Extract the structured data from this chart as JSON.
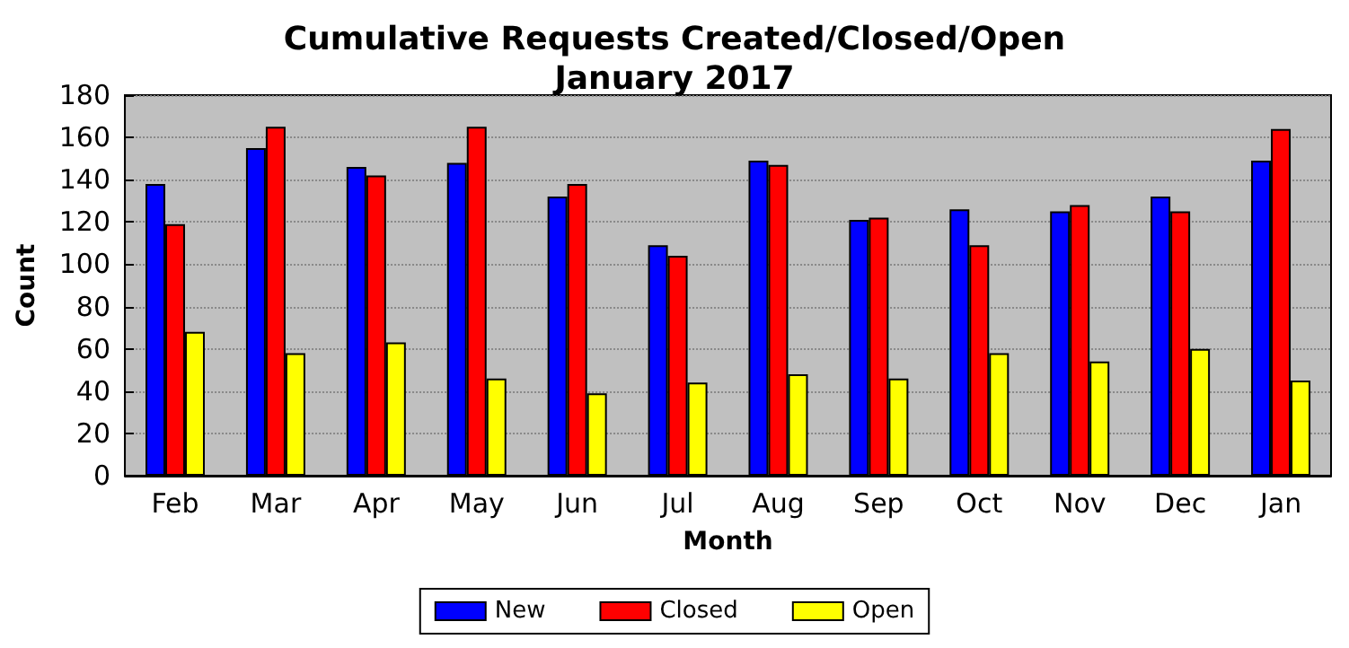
{
  "chart_data": {
    "type": "bar",
    "title": "Cumulative Requests Created/Closed/Open\nJanuary 2017",
    "xlabel": "Month",
    "ylabel": "Count",
    "categories": [
      "Feb",
      "Mar",
      "Apr",
      "May",
      "Jun",
      "Jul",
      "Aug",
      "Sep",
      "Oct",
      "Nov",
      "Dec",
      "Jan"
    ],
    "series": [
      {
        "name": "New",
        "color": "#0000ff",
        "values": [
          138,
          155,
          146,
          148,
          132,
          109,
          149,
          121,
          126,
          125,
          132,
          149
        ]
      },
      {
        "name": "Closed",
        "color": "#ff0000",
        "values": [
          119,
          165,
          142,
          165,
          138,
          104,
          147,
          122,
          109,
          128,
          125,
          164
        ]
      },
      {
        "name": "Open",
        "color": "#ffff00",
        "values": [
          68,
          58,
          63,
          46,
          39,
          44,
          48,
          46,
          58,
          54,
          60,
          45
        ]
      }
    ],
    "ylim": [
      0,
      180
    ],
    "yticks": [
      0,
      20,
      40,
      60,
      80,
      100,
      120,
      140,
      160,
      180
    ],
    "grid": "y",
    "legend": "bottom"
  }
}
